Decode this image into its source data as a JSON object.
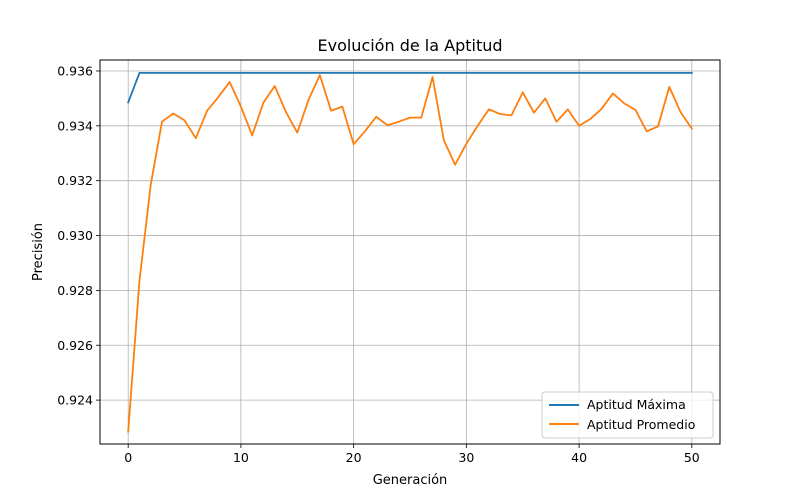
{
  "chart_data": {
    "type": "line",
    "title": "Evolución de la Aptitud",
    "xlabel": "Generación",
    "ylabel": "Precisión",
    "xlim": [
      -2.5,
      52.5
    ],
    "ylim": [
      0.9224,
      0.9364
    ],
    "xticks": [
      0,
      10,
      20,
      30,
      40,
      50
    ],
    "yticks": [
      0.924,
      0.926,
      0.928,
      0.93,
      0.932,
      0.934,
      0.936
    ],
    "ytick_labels": [
      "0.924",
      "0.926",
      "0.928",
      "0.930",
      "0.932",
      "0.934",
      "0.936"
    ],
    "grid": true,
    "legend_position": "lower-right",
    "x": [
      0,
      1,
      2,
      3,
      4,
      5,
      6,
      7,
      8,
      9,
      10,
      11,
      12,
      13,
      14,
      15,
      16,
      17,
      18,
      19,
      20,
      21,
      22,
      23,
      24,
      25,
      26,
      27,
      28,
      29,
      30,
      31,
      32,
      33,
      34,
      35,
      36,
      37,
      38,
      39,
      40,
      41,
      42,
      43,
      44,
      45,
      46,
      47,
      48,
      49,
      50
    ],
    "series": [
      {
        "name": "Aptitud Máxima",
        "color": "#1f77b4",
        "values": [
          0.93485,
          0.93593,
          0.93593,
          0.93593,
          0.93593,
          0.93593,
          0.93593,
          0.93593,
          0.93593,
          0.93593,
          0.93593,
          0.93593,
          0.93593,
          0.93593,
          0.93593,
          0.93593,
          0.93593,
          0.93593,
          0.93593,
          0.93593,
          0.93593,
          0.93593,
          0.93593,
          0.93593,
          0.93593,
          0.93593,
          0.93593,
          0.93593,
          0.93593,
          0.93593,
          0.93593,
          0.93593,
          0.93593,
          0.93593,
          0.93593,
          0.93593,
          0.93593,
          0.93593,
          0.93593,
          0.93593,
          0.93593,
          0.93593,
          0.93593,
          0.93593,
          0.93593,
          0.93593,
          0.93593,
          0.93593,
          0.93593,
          0.93593,
          0.93593
        ]
      },
      {
        "name": "Aptitud Promedio",
        "color": "#ff7f0e",
        "values": [
          0.92285,
          0.92835,
          0.93185,
          0.93415,
          0.93445,
          0.9342,
          0.93355,
          0.93455,
          0.93505,
          0.9356,
          0.9347,
          0.93365,
          0.93485,
          0.93545,
          0.9345,
          0.93375,
          0.93495,
          0.93585,
          0.93455,
          0.9347,
          0.93333,
          0.9338,
          0.93433,
          0.93402,
          0.93415,
          0.9343,
          0.9343,
          0.93578,
          0.93348,
          0.93258,
          0.93335,
          0.934,
          0.9346,
          0.93443,
          0.93438,
          0.93522,
          0.93448,
          0.935,
          0.93415,
          0.9346,
          0.934,
          0.93425,
          0.93462,
          0.93518,
          0.93482,
          0.93458,
          0.9338,
          0.93398,
          0.93542,
          0.9345,
          0.9339
        ]
      }
    ]
  }
}
